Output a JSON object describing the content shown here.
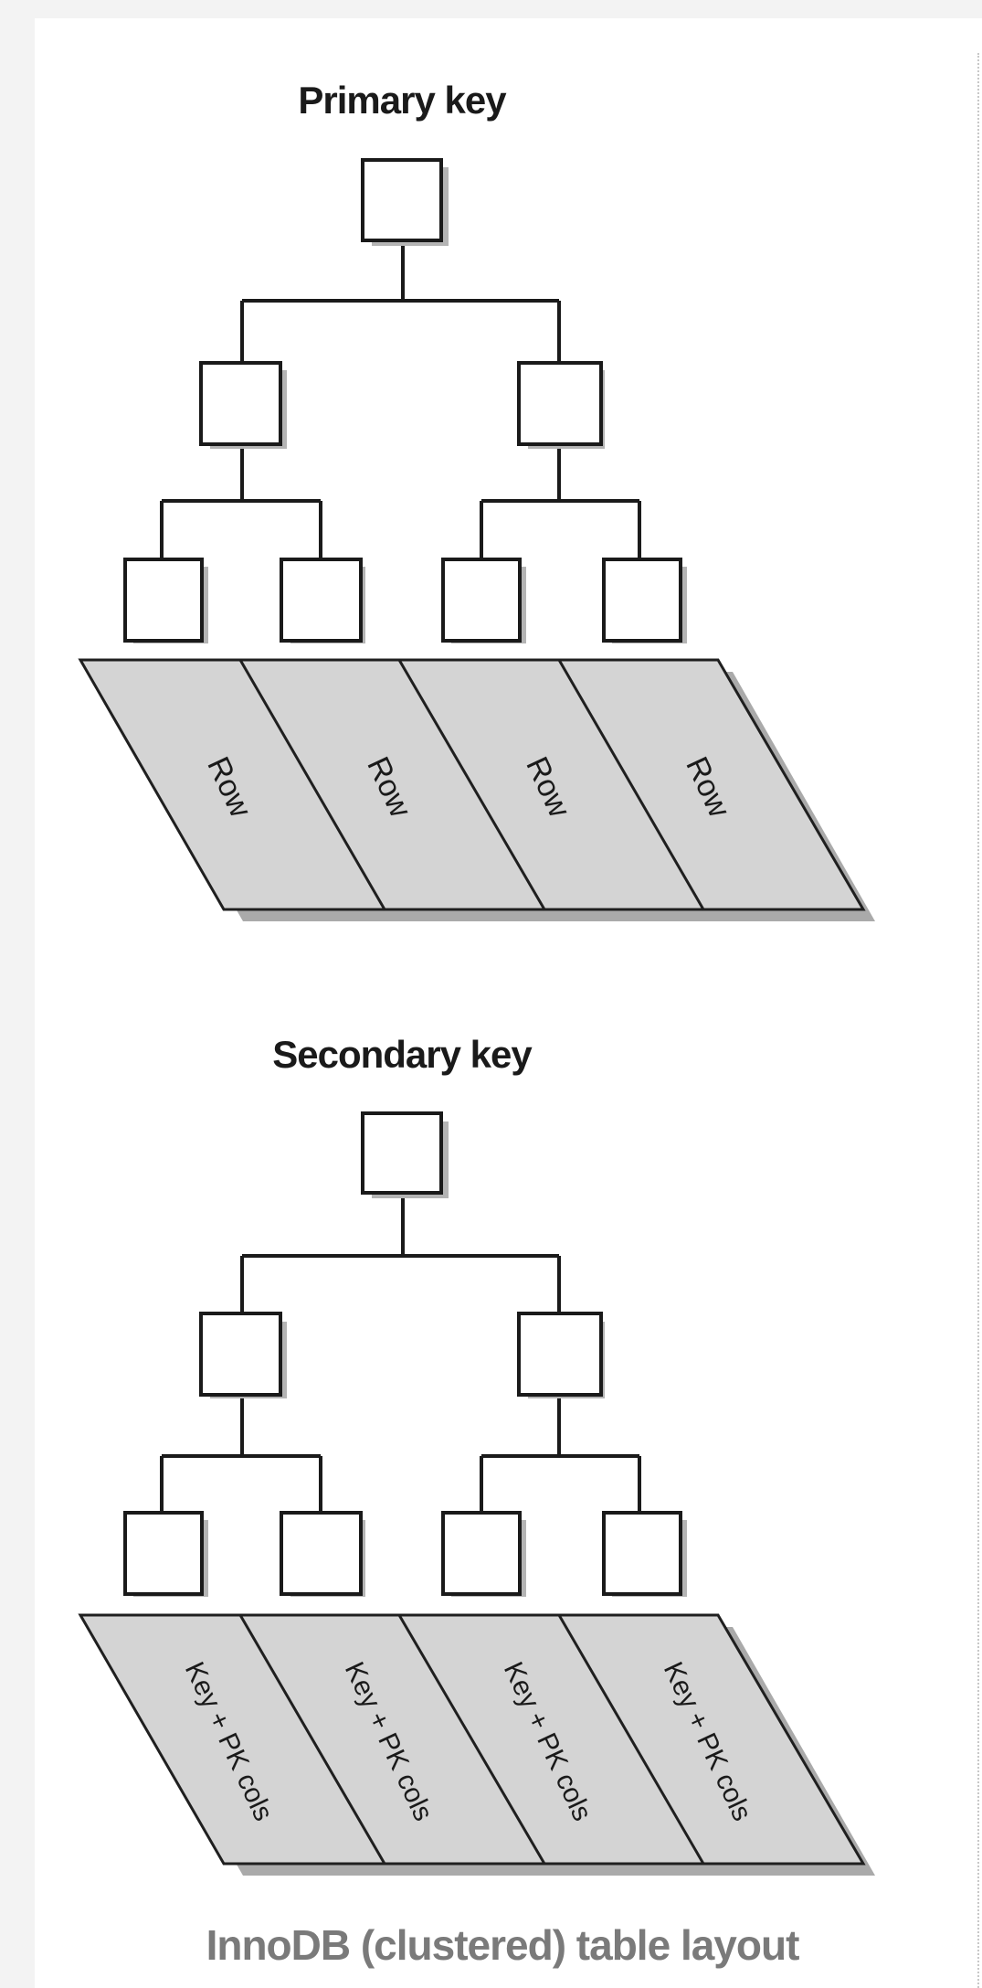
{
  "diagram": {
    "primary": {
      "title": "Primary key",
      "leaf_labels": [
        "Row",
        "Row",
        "Row",
        "Row"
      ]
    },
    "secondary": {
      "title": "Secondary key",
      "leaf_labels": [
        "Key + PK cols",
        "Key + PK cols",
        "Key + PK cols",
        "Key + PK cols"
      ]
    },
    "caption": "InnoDB (clustered) table layout",
    "colors": {
      "box_fill": "#ffffff",
      "box_stroke": "#1a1a1a",
      "box_shadow": "#b4b4b4",
      "row_fill": "#d4d4d4",
      "row_stroke": "#1f1f1f",
      "row_shadow": "#aaaaaa",
      "connector": "#1a1a1a",
      "caption_color": "#7a7a7a"
    }
  }
}
